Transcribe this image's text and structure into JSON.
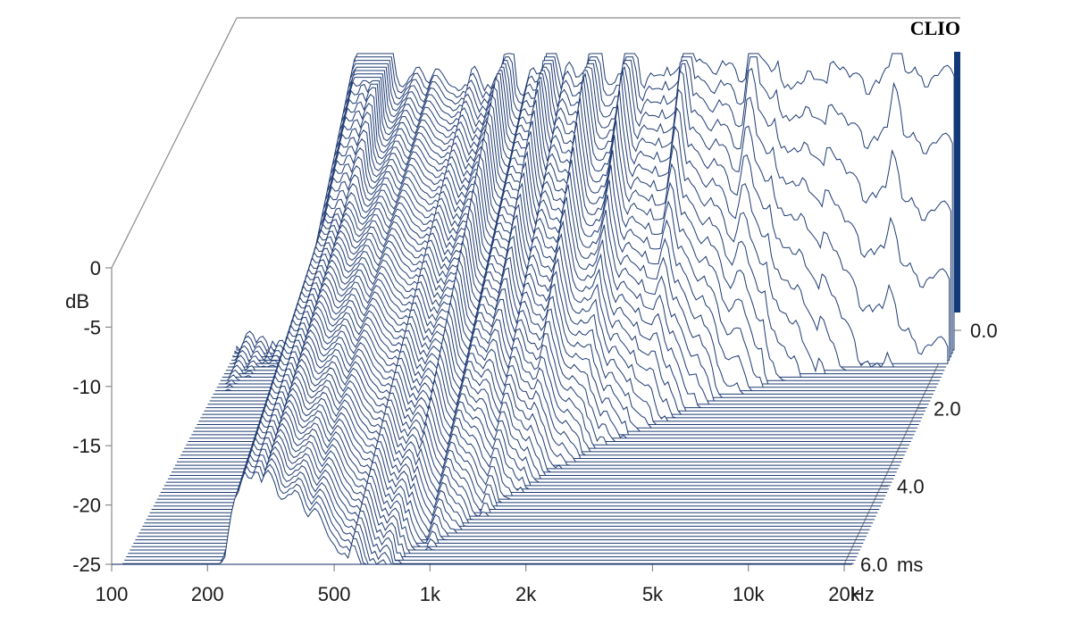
{
  "brand": "CLIO",
  "colors": {
    "line": "#1f3b73",
    "axis": "#8a8a8a",
    "text": "#1a1a1a"
  },
  "chart_data": {
    "type": "waterfall",
    "y_axis": {
      "unit_label": "dB",
      "ticks": [
        "0",
        "-5",
        "-10",
        "-15",
        "-20",
        "-25"
      ],
      "range": [
        -25,
        0
      ]
    },
    "x_axis": {
      "unit_label": "Hz",
      "ticks": [
        "100",
        "200",
        "500",
        "1k",
        "2k",
        "5k",
        "10k",
        "20k"
      ],
      "range": [
        100,
        20000
      ],
      "scale": "log"
    },
    "z_axis": {
      "unit_label": "ms",
      "ticks": [
        "0.0",
        "2.0",
        "4.0",
        "6.0"
      ],
      "range": [
        0,
        6
      ]
    },
    "slices": 70
  }
}
